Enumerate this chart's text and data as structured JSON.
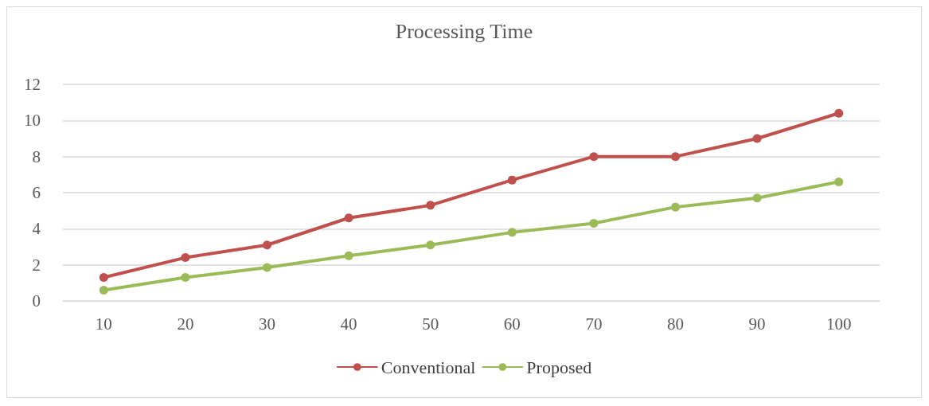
{
  "chart_data": {
    "type": "line",
    "title": "Processing Time",
    "categories": [
      "10",
      "20",
      "30",
      "40",
      "50",
      "60",
      "70",
      "80",
      "90",
      "100"
    ],
    "series": [
      {
        "name": "Conventional",
        "color": "#c0504d",
        "values": [
          1.3,
          2.4,
          3.1,
          4.6,
          5.3,
          6.7,
          8.0,
          8.0,
          9.0,
          10.4
        ]
      },
      {
        "name": "Proposed",
        "color": "#9bbb59",
        "values": [
          0.6,
          1.3,
          1.85,
          2.5,
          3.1,
          3.8,
          4.3,
          5.2,
          5.7,
          6.6
        ]
      }
    ],
    "ylim": [
      0,
      12
    ],
    "yticks": [
      0,
      2,
      4,
      6,
      8,
      10,
      12
    ],
    "grid": "y",
    "legend": "bottom",
    "marker": "circle",
    "line_style": "solid"
  }
}
